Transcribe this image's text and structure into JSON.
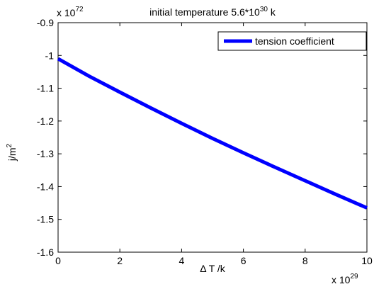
{
  "chart_data": {
    "type": "line",
    "title_prefix": "initial temperature 5.6*10",
    "title_exp": "30",
    "title_suffix": " k",
    "xlabel": "Δ T  /k",
    "ylabel_base": "j/m",
    "ylabel_exp": "2",
    "x_multiplier_base": "x 10",
    "x_multiplier_exp": "29",
    "y_multiplier_base": "x 10",
    "y_multiplier_exp": "72",
    "xlim": [
      0,
      10
    ],
    "ylim": [
      -1.6,
      -0.9
    ],
    "x_ticks": [
      0,
      2,
      4,
      6,
      8,
      10
    ],
    "x_tick_labels": [
      "0",
      "2",
      "4",
      "6",
      "8",
      "10"
    ],
    "y_ticks": [
      -0.9,
      -1.0,
      -1.1,
      -1.2,
      -1.3,
      -1.4,
      -1.5,
      -1.6
    ],
    "y_tick_labels": [
      "-0.9",
      "-1",
      "-1.1",
      "-1.2",
      "-1.3",
      "-1.4",
      "-1.5",
      "-1.6"
    ],
    "grid": false,
    "legend_position": "top-right",
    "series": [
      {
        "name": "tension coefficient",
        "color": "#0000ff",
        "x": [
          0,
          1,
          2,
          3,
          4,
          5,
          6,
          7,
          8,
          9,
          10
        ],
        "y": [
          -1.01,
          -1.063,
          -1.112,
          -1.16,
          -1.207,
          -1.253,
          -1.297,
          -1.34,
          -1.382,
          -1.424,
          -1.465
        ]
      }
    ]
  }
}
